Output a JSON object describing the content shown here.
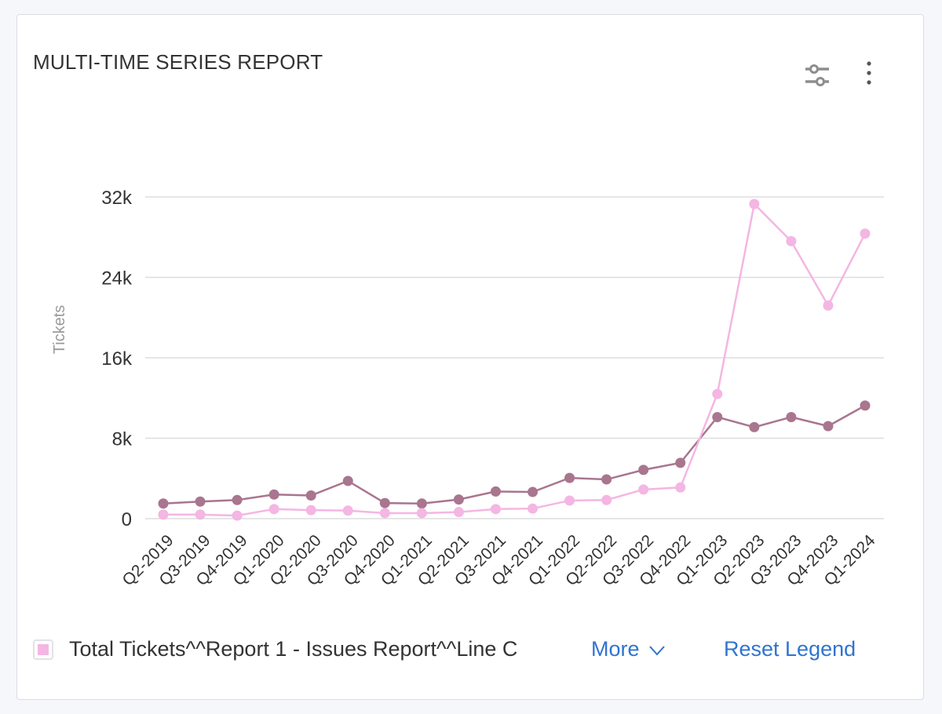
{
  "widget": {
    "title": "MULTI-TIME SERIES REPORT",
    "icons": [
      "sliders-icon",
      "more-vertical-icon"
    ]
  },
  "chart_data": {
    "type": "line",
    "title": "",
    "xlabel": "",
    "ylabel": "Tickets",
    "ylim": [
      0,
      32000
    ],
    "yticks": [
      0,
      8000,
      16000,
      24000,
      32000
    ],
    "ytick_labels": [
      "0",
      "8k",
      "16k",
      "24k",
      "32k"
    ],
    "grid": true,
    "categories": [
      "Q2-2019",
      "Q3-2019",
      "Q4-2019",
      "Q1-2020",
      "Q2-2020",
      "Q3-2020",
      "Q4-2020",
      "Q1-2021",
      "Q2-2021",
      "Q3-2021",
      "Q4-2021",
      "Q1-2022",
      "Q2-2022",
      "Q3-2022",
      "Q4-2022",
      "Q1-2023",
      "Q2-2023",
      "Q3-2023",
      "Q4-2023",
      "Q1-2024"
    ],
    "series": [
      {
        "color": "#a9758f",
        "values": [
          1500,
          1700,
          1850,
          2400,
          2300,
          3750,
          1550,
          1500,
          1900,
          2700,
          2650,
          4050,
          3900,
          4850,
          5550,
          10100,
          9100,
          10100,
          9200,
          11250
        ]
      },
      {
        "name": "Total Tickets^^Report 1 - Issues Report^^Line C",
        "color": "#f4b6e2",
        "values": [
          400,
          400,
          300,
          950,
          850,
          800,
          550,
          550,
          650,
          950,
          1000,
          1800,
          1850,
          2900,
          3100,
          12400,
          31300,
          27600,
          21200,
          28350
        ]
      }
    ]
  },
  "legend": {
    "items": [
      {
        "label": "Total Tickets^^Report 1 - Issues Report^^Line C",
        "color": "#f4b6e2"
      }
    ],
    "more_label": "More",
    "reset_label": "Reset Legend"
  }
}
